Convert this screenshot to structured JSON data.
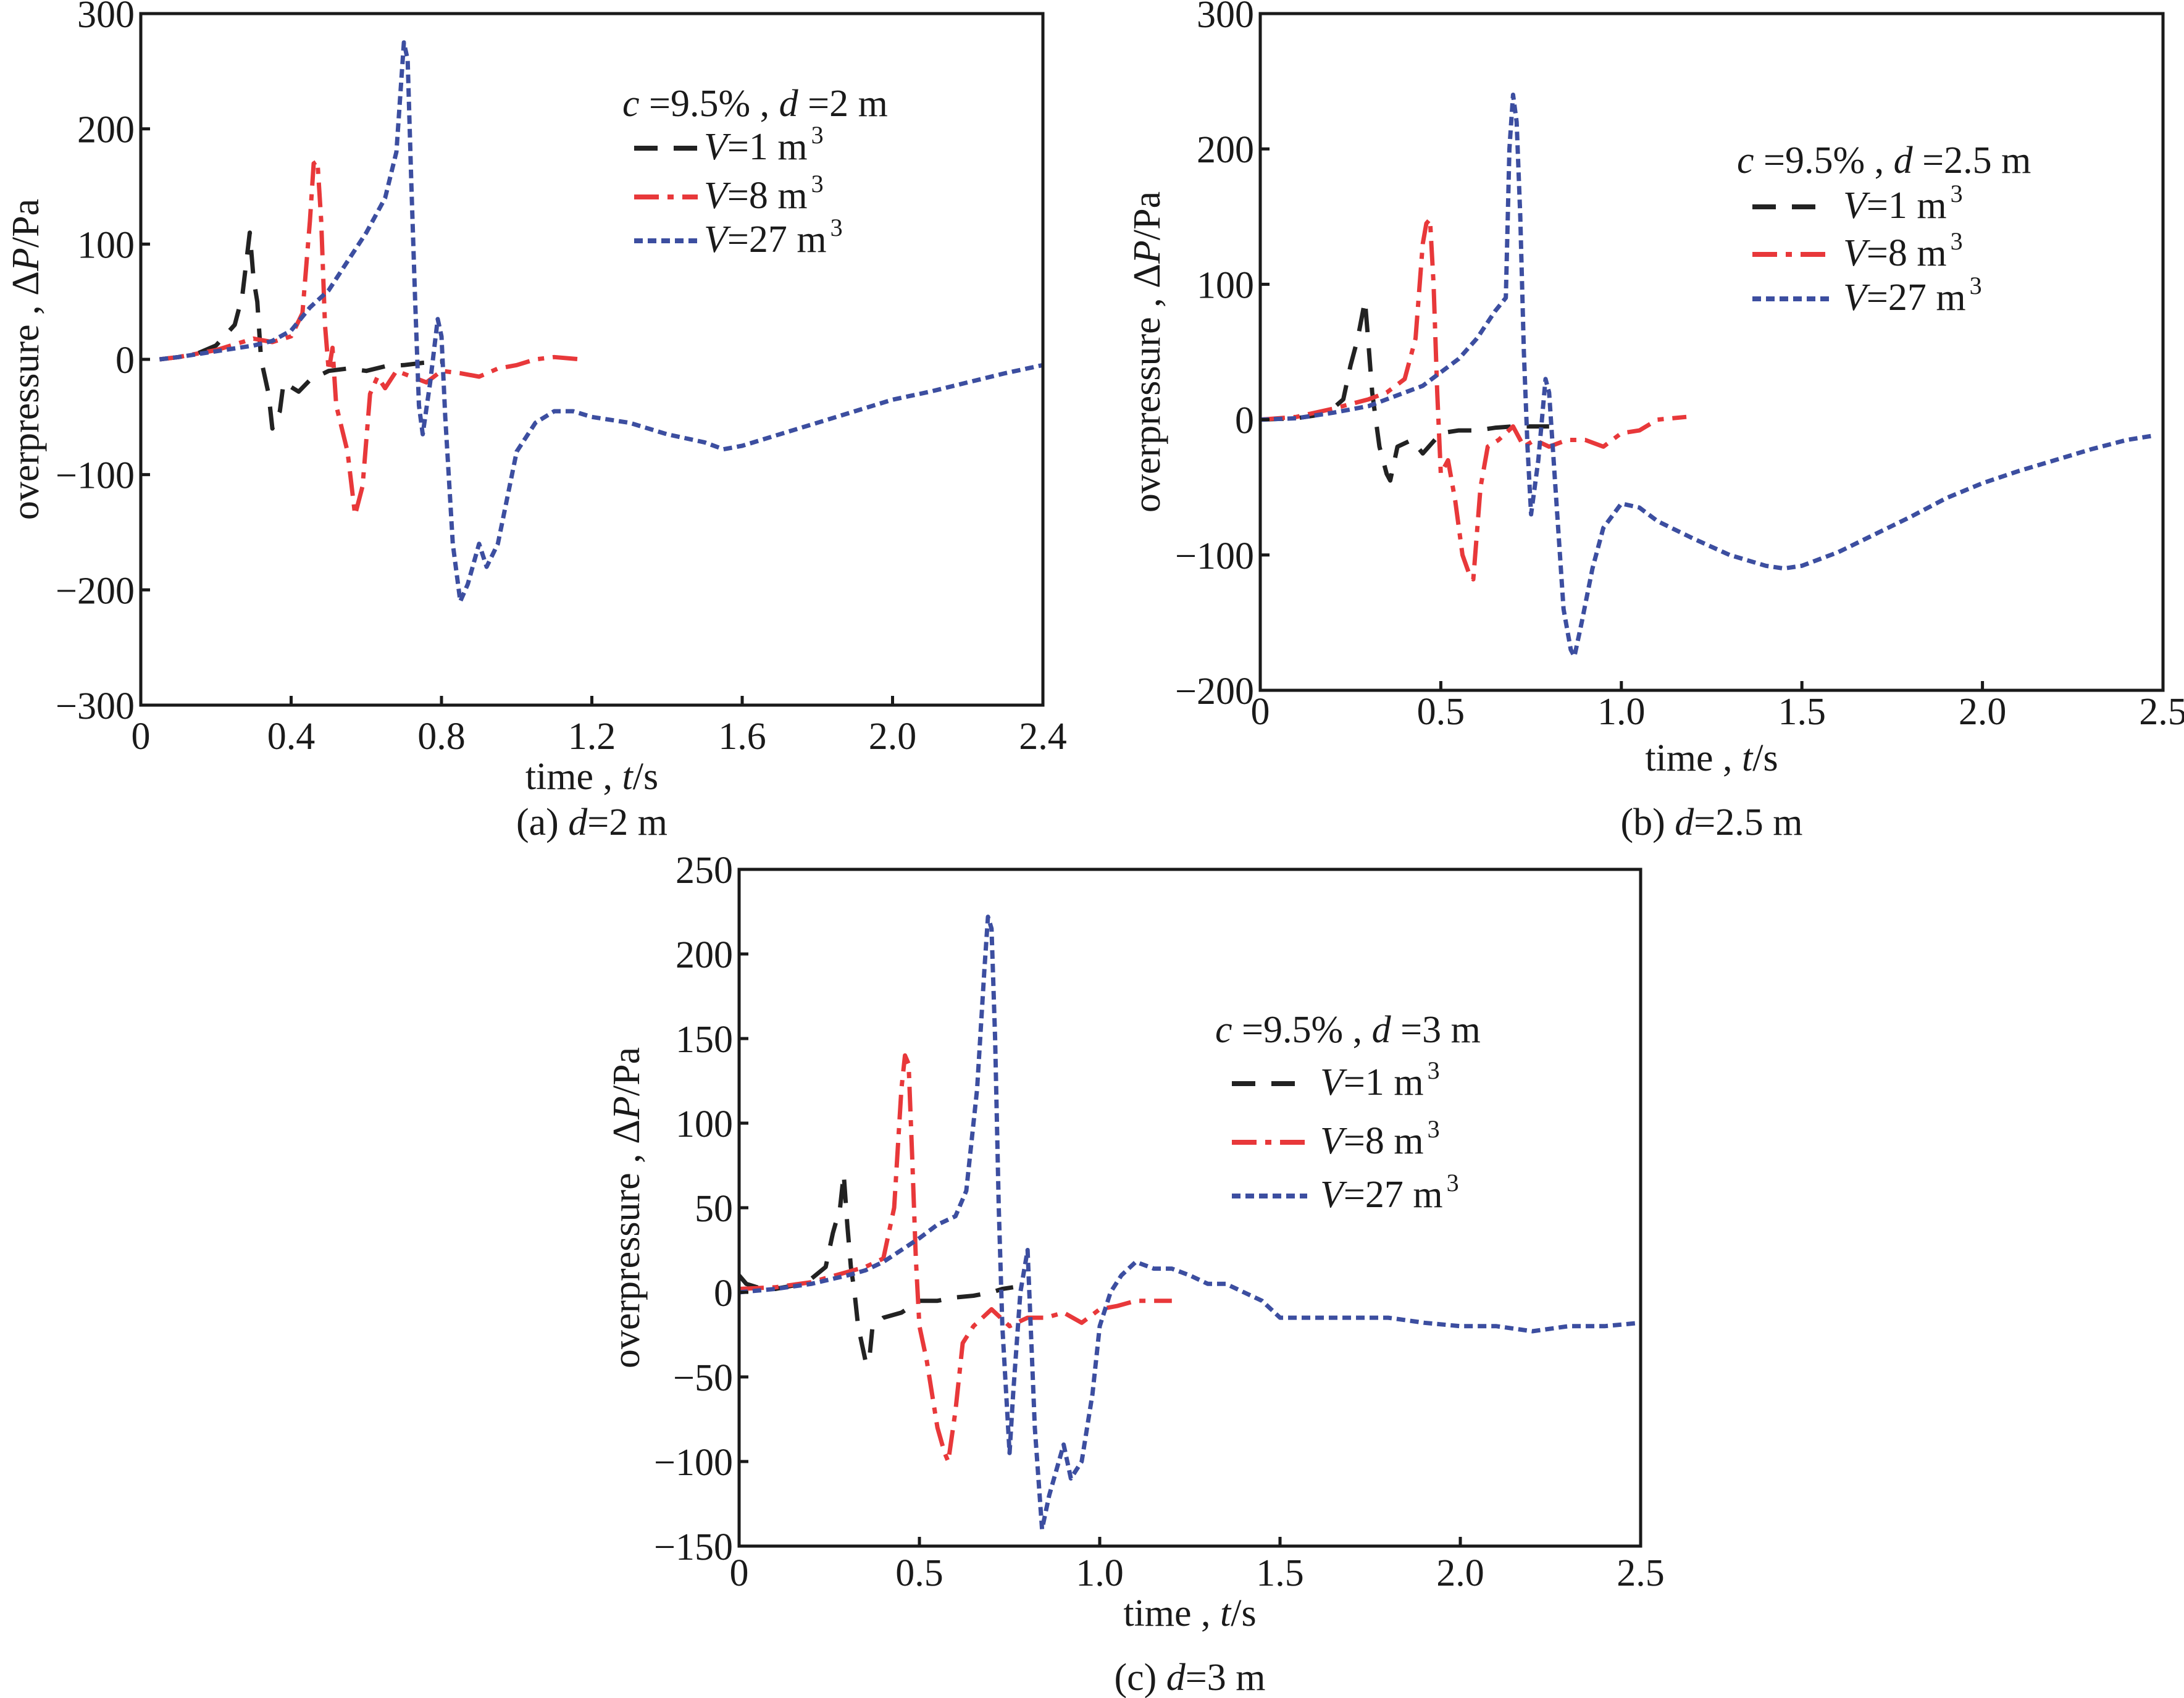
{
  "figure": {
    "panels_count": 3
  },
  "chart_data": [
    {
      "id": "a",
      "type": "line",
      "caption_prefix": "(a) ",
      "caption_var": "d",
      "caption_suffix": "=2 m",
      "xlabel": "time , t /s",
      "xlabel_parts": [
        "time , ",
        "t",
        "/s"
      ],
      "ylabel_parts": [
        "overpressure , Δ",
        "P",
        "/Pa"
      ],
      "xlim": [
        0,
        2.4
      ],
      "ylim": [
        -300,
        300
      ],
      "xticks": [
        0,
        0.4,
        0.8,
        1.2,
        1.6,
        2.0,
        2.4
      ],
      "xtick_labels": [
        "0",
        "0.4",
        "0.8",
        "1.2",
        "1.6",
        "2.0",
        "2.4"
      ],
      "yticks": [
        -300,
        -200,
        -100,
        0,
        100,
        200,
        300
      ],
      "ytick_labels": [
        "−300",
        "−200",
        "−100",
        "0",
        "100",
        "200",
        "300"
      ],
      "legend": {
        "title_parts": [
          "c",
          " =9.5% , ",
          "d",
          " =2 m"
        ],
        "placement": "upper-right"
      },
      "series": [
        {
          "name": "V=1 m3",
          "label_var": "V",
          "label_rest": "=1 m",
          "label_sup": "3",
          "color": "#222222",
          "style": "dashed",
          "x": [
            0.05,
            0.1,
            0.15,
            0.2,
            0.25,
            0.27,
            0.29,
            0.3,
            0.31,
            0.32,
            0.34,
            0.35,
            0.37,
            0.38,
            0.42,
            0.45,
            0.5,
            0.55,
            0.6,
            0.65,
            0.7,
            0.75,
            0.8
          ],
          "y": [
            0,
            2,
            5,
            12,
            30,
            55,
            110,
            70,
            50,
            0,
            -30,
            -60,
            -45,
            -20,
            -28,
            -18,
            -10,
            -8,
            -10,
            -6,
            -5,
            -3,
            -2
          ]
        },
        {
          "name": "V=8 m3",
          "label_var": "V",
          "label_rest": "=8 m",
          "label_sup": "3",
          "color": "#e8383a",
          "style": "dashdot",
          "x": [
            0.05,
            0.1,
            0.2,
            0.3,
            0.35,
            0.4,
            0.43,
            0.45,
            0.46,
            0.47,
            0.48,
            0.49,
            0.5,
            0.51,
            0.52,
            0.55,
            0.57,
            0.59,
            0.61,
            0.63,
            0.65,
            0.68,
            0.72,
            0.76,
            0.8,
            0.85,
            0.9,
            0.95,
            1.0,
            1.05,
            1.1,
            1.17
          ],
          "y": [
            0,
            2,
            8,
            18,
            15,
            20,
            40,
            120,
            170,
            172,
            120,
            30,
            -10,
            10,
            -40,
            -80,
            -135,
            -110,
            -30,
            -15,
            -25,
            -10,
            -15,
            -20,
            -10,
            -12,
            -15,
            -8,
            -5,
            0,
            2,
            0
          ]
        },
        {
          "name": "V=27 m3",
          "label_var": "V",
          "label_rest": "=27 m",
          "label_sup": "3",
          "color": "#3c4ea0",
          "style": "dotted",
          "x": [
            0.05,
            0.1,
            0.2,
            0.3,
            0.35,
            0.4,
            0.45,
            0.5,
            0.55,
            0.6,
            0.65,
            0.68,
            0.7,
            0.71,
            0.72,
            0.73,
            0.74,
            0.75,
            0.77,
            0.79,
            0.8,
            0.81,
            0.83,
            0.85,
            0.87,
            0.9,
            0.92,
            0.95,
            1.0,
            1.05,
            1.1,
            1.15,
            1.2,
            1.3,
            1.4,
            1.5,
            1.55,
            1.6,
            1.7,
            1.8,
            1.9,
            2.0,
            2.1,
            2.2,
            2.3,
            2.4
          ],
          "y": [
            0,
            2,
            7,
            12,
            16,
            25,
            45,
            60,
            85,
            110,
            140,
            180,
            275,
            260,
            150,
            50,
            -40,
            -65,
            -20,
            35,
            20,
            -50,
            -160,
            -210,
            -195,
            -160,
            -180,
            -160,
            -80,
            -55,
            -45,
            -45,
            -50,
            -55,
            -65,
            -72,
            -78,
            -75,
            -65,
            -55,
            -45,
            -35,
            -28,
            -20,
            -12,
            -5
          ]
        }
      ]
    },
    {
      "id": "b",
      "type": "line",
      "caption_prefix": "(b) ",
      "caption_var": "d",
      "caption_suffix": "=2.5 m",
      "xlabel": "time , t /s",
      "xlabel_parts": [
        "time , ",
        "t",
        "/s"
      ],
      "ylabel_parts": [
        "overpressure , Δ",
        "P",
        "/Pa"
      ],
      "xlim": [
        0,
        2.5
      ],
      "ylim": [
        -200,
        300
      ],
      "xticks": [
        0,
        0.5,
        1.0,
        1.5,
        2.0,
        2.5
      ],
      "xtick_labels": [
        "0",
        "0.5",
        "1.0",
        "1.5",
        "2.0",
        "2.5"
      ],
      "yticks": [
        -200,
        -100,
        0,
        100,
        200,
        300
      ],
      "ytick_labels": [
        "−200",
        "−100",
        "0",
        "100",
        "200",
        "300"
      ],
      "legend": {
        "title_parts": [
          "c",
          " =9.5% , ",
          "d",
          " =2.5  m"
        ],
        "placement": "upper-right"
      },
      "series": [
        {
          "name": "V=1 m3",
          "label_var": "V",
          "label_rest": "=1 m",
          "label_sup": "3",
          "color": "#222222",
          "style": "dashed",
          "x": [
            0,
            0.1,
            0.15,
            0.2,
            0.23,
            0.25,
            0.27,
            0.29,
            0.3,
            0.31,
            0.32,
            0.33,
            0.35,
            0.36,
            0.38,
            0.42,
            0.45,
            0.5,
            0.55,
            0.6,
            0.65,
            0.7,
            0.75,
            0.8
          ],
          "y": [
            0,
            1,
            3,
            8,
            15,
            40,
            60,
            88,
            55,
            20,
            0,
            -20,
            -40,
            -45,
            -20,
            -15,
            -25,
            -10,
            -8,
            -8,
            -6,
            -5,
            -5,
            -5
          ]
        },
        {
          "name": "V=8 m3",
          "label_var": "V",
          "label_rest": "=8 m",
          "label_sup": "3",
          "color": "#e8383a",
          "style": "dashdot",
          "x": [
            0,
            0.1,
            0.2,
            0.3,
            0.35,
            0.4,
            0.43,
            0.45,
            0.46,
            0.47,
            0.48,
            0.49,
            0.5,
            0.52,
            0.54,
            0.56,
            0.58,
            0.59,
            0.61,
            0.63,
            0.66,
            0.7,
            0.73,
            0.76,
            0.8,
            0.85,
            0.9,
            0.95,
            1.0,
            1.05,
            1.1,
            1.18
          ],
          "y": [
            0,
            2,
            8,
            15,
            20,
            30,
            60,
            130,
            145,
            148,
            100,
            20,
            -40,
            -30,
            -60,
            -100,
            -115,
            -118,
            -50,
            -20,
            -15,
            -5,
            -20,
            -15,
            -20,
            -15,
            -15,
            -20,
            -10,
            -8,
            0,
            2
          ]
        },
        {
          "name": "V=27 m3",
          "label_var": "V",
          "label_rest": "=27 m",
          "label_sup": "3",
          "color": "#3c4ea0",
          "style": "dotted",
          "x": [
            0,
            0.1,
            0.2,
            0.3,
            0.35,
            0.4,
            0.45,
            0.5,
            0.55,
            0.6,
            0.65,
            0.68,
            0.69,
            0.7,
            0.71,
            0.72,
            0.73,
            0.74,
            0.75,
            0.77,
            0.79,
            0.8,
            0.82,
            0.84,
            0.86,
            0.87,
            0.89,
            0.92,
            0.95,
            1.0,
            1.05,
            1.1,
            1.2,
            1.3,
            1.4,
            1.45,
            1.5,
            1.6,
            1.7,
            1.8,
            1.9,
            2.0,
            2.1,
            2.2,
            2.3,
            2.4,
            2.47
          ],
          "y": [
            0,
            1,
            5,
            10,
            15,
            20,
            25,
            35,
            45,
            60,
            80,
            90,
            200,
            240,
            220,
            150,
            50,
            -20,
            -70,
            -30,
            30,
            20,
            -60,
            -140,
            -170,
            -175,
            -150,
            -110,
            -80,
            -62,
            -65,
            -75,
            -88,
            -100,
            -108,
            -110,
            -108,
            -98,
            -85,
            -72,
            -58,
            -47,
            -38,
            -30,
            -22,
            -15,
            -12
          ]
        }
      ]
    },
    {
      "id": "c",
      "type": "line",
      "caption_prefix": "(c) ",
      "caption_var": "d",
      "caption_suffix": "=3 m",
      "xlabel": "time , t /s",
      "xlabel_parts": [
        "time , ",
        "t",
        "/s"
      ],
      "ylabel_parts": [
        "overpressure , Δ",
        "P",
        "/Pa"
      ],
      "xlim": [
        0,
        2.5
      ],
      "ylim": [
        -150,
        250
      ],
      "xticks": [
        0,
        0.5,
        1.0,
        1.5,
        2.0,
        2.5
      ],
      "xtick_labels": [
        "0",
        "0.5",
        "1.0",
        "1.5",
        "2.0",
        "2.5"
      ],
      "yticks": [
        -150,
        -100,
        -50,
        0,
        50,
        100,
        150,
        200,
        250
      ],
      "ytick_labels": [
        "−150",
        "−100",
        "−50",
        "0",
        "50",
        "100",
        "150",
        "200",
        "250"
      ],
      "legend": {
        "title_parts": [
          "c",
          " =9.5% , ",
          "d",
          " =3 m"
        ],
        "placement": "upper-right"
      },
      "series": [
        {
          "name": "V=1 m3",
          "label_var": "V",
          "label_rest": "=1 m",
          "label_sup": "3",
          "color": "#222222",
          "style": "dashed",
          "x": [
            0,
            0.02,
            0.05,
            0.1,
            0.15,
            0.2,
            0.24,
            0.26,
            0.28,
            0.29,
            0.3,
            0.31,
            0.32,
            0.33,
            0.35,
            0.36,
            0.37,
            0.4,
            0.45,
            0.5,
            0.55,
            0.6,
            0.65,
            0.7,
            0.73,
            0.76
          ],
          "y": [
            10,
            5,
            3,
            2,
            4,
            8,
            15,
            35,
            50,
            70,
            40,
            15,
            0,
            -20,
            -40,
            -42,
            -20,
            -15,
            -12,
            -5,
            -5,
            -3,
            -2,
            0,
            2,
            3
          ]
        },
        {
          "name": "V=8 m3",
          "label_var": "V",
          "label_rest": "=8 m",
          "label_sup": "3",
          "color": "#e8383a",
          "style": "dashdot",
          "x": [
            0,
            0.1,
            0.2,
            0.3,
            0.35,
            0.4,
            0.43,
            0.45,
            0.46,
            0.47,
            0.48,
            0.49,
            0.5,
            0.52,
            0.55,
            0.57,
            0.58,
            0.6,
            0.62,
            0.65,
            0.7,
            0.75,
            0.8,
            0.85,
            0.9,
            0.95,
            1.0,
            1.05,
            1.1,
            1.2
          ],
          "y": [
            2,
            3,
            6,
            12,
            15,
            20,
            50,
            120,
            140,
            135,
            80,
            20,
            -20,
            -40,
            -80,
            -95,
            -100,
            -70,
            -30,
            -20,
            -10,
            -20,
            -15,
            -15,
            -12,
            -18,
            -10,
            -8,
            -5,
            -5
          ]
        },
        {
          "name": "V=27 m3",
          "label_var": "V",
          "label_rest": "=27 m",
          "label_sup": "3",
          "color": "#3c4ea0",
          "style": "dotted",
          "x": [
            0,
            0.1,
            0.2,
            0.3,
            0.35,
            0.4,
            0.45,
            0.5,
            0.55,
            0.6,
            0.63,
            0.66,
            0.68,
            0.69,
            0.7,
            0.71,
            0.72,
            0.73,
            0.75,
            0.76,
            0.78,
            0.8,
            0.82,
            0.84,
            0.86,
            0.9,
            0.92,
            0.95,
            0.98,
            1.0,
            1.03,
            1.06,
            1.1,
            1.15,
            1.2,
            1.25,
            1.3,
            1.35,
            1.4,
            1.45,
            1.5,
            1.6,
            1.7,
            1.8,
            1.9,
            2.0,
            2.1,
            2.2,
            2.3,
            2.4,
            2.5
          ],
          "y": [
            0,
            2,
            5,
            10,
            13,
            18,
            25,
            32,
            40,
            45,
            60,
            120,
            190,
            222,
            215,
            150,
            50,
            -20,
            -95,
            -60,
            0,
            25,
            -80,
            -140,
            -120,
            -90,
            -110,
            -100,
            -60,
            -20,
            0,
            10,
            18,
            14,
            14,
            10,
            5,
            5,
            0,
            -5,
            -15,
            -15,
            -15,
            -15,
            -18,
            -20,
            -20,
            -23,
            -20,
            -20,
            -18
          ]
        }
      ]
    }
  ]
}
